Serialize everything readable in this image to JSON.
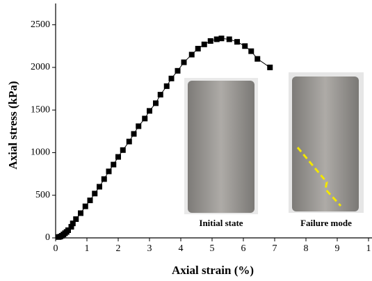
{
  "chart_data": {
    "type": "line",
    "xlabel": "Axial strain (%)",
    "ylabel": "Axial stress (kPa)",
    "x": [
      0.1,
      0.15,
      0.2,
      0.25,
      0.3,
      0.35,
      0.4,
      0.5,
      0.55,
      0.65,
      0.8,
      0.95,
      1.1,
      1.25,
      1.4,
      1.55,
      1.7,
      1.85,
      2.0,
      2.15,
      2.35,
      2.5,
      2.65,
      2.85,
      3.0,
      3.2,
      3.35,
      3.55,
      3.7,
      3.9,
      4.1,
      4.35,
      4.55,
      4.75,
      4.95,
      5.15,
      5.3,
      5.55,
      5.8,
      6.05,
      6.25,
      6.45,
      6.85
    ],
    "values": [
      10,
      15,
      25,
      40,
      55,
      70,
      90,
      130,
      170,
      220,
      290,
      370,
      440,
      520,
      600,
      690,
      780,
      860,
      950,
      1030,
      1130,
      1220,
      1310,
      1400,
      1490,
      1580,
      1680,
      1780,
      1870,
      1960,
      2060,
      2150,
      2220,
      2270,
      2310,
      2330,
      2340,
      2330,
      2300,
      2250,
      2190,
      2100,
      2000
    ],
    "color": "#000000",
    "xlim": [
      0,
      10
    ],
    "ylim": [
      0,
      2750
    ],
    "xticks": [
      0,
      1,
      2,
      3,
      4,
      5,
      6,
      7,
      8,
      9,
      {
        "value": 10,
        "label": "1"
      }
    ],
    "yticks": [
      0,
      500,
      1000,
      1500,
      2000,
      2500
    ],
    "insets": [
      {
        "label": "Initial state"
      },
      {
        "label": "Failure mode"
      }
    ]
  }
}
